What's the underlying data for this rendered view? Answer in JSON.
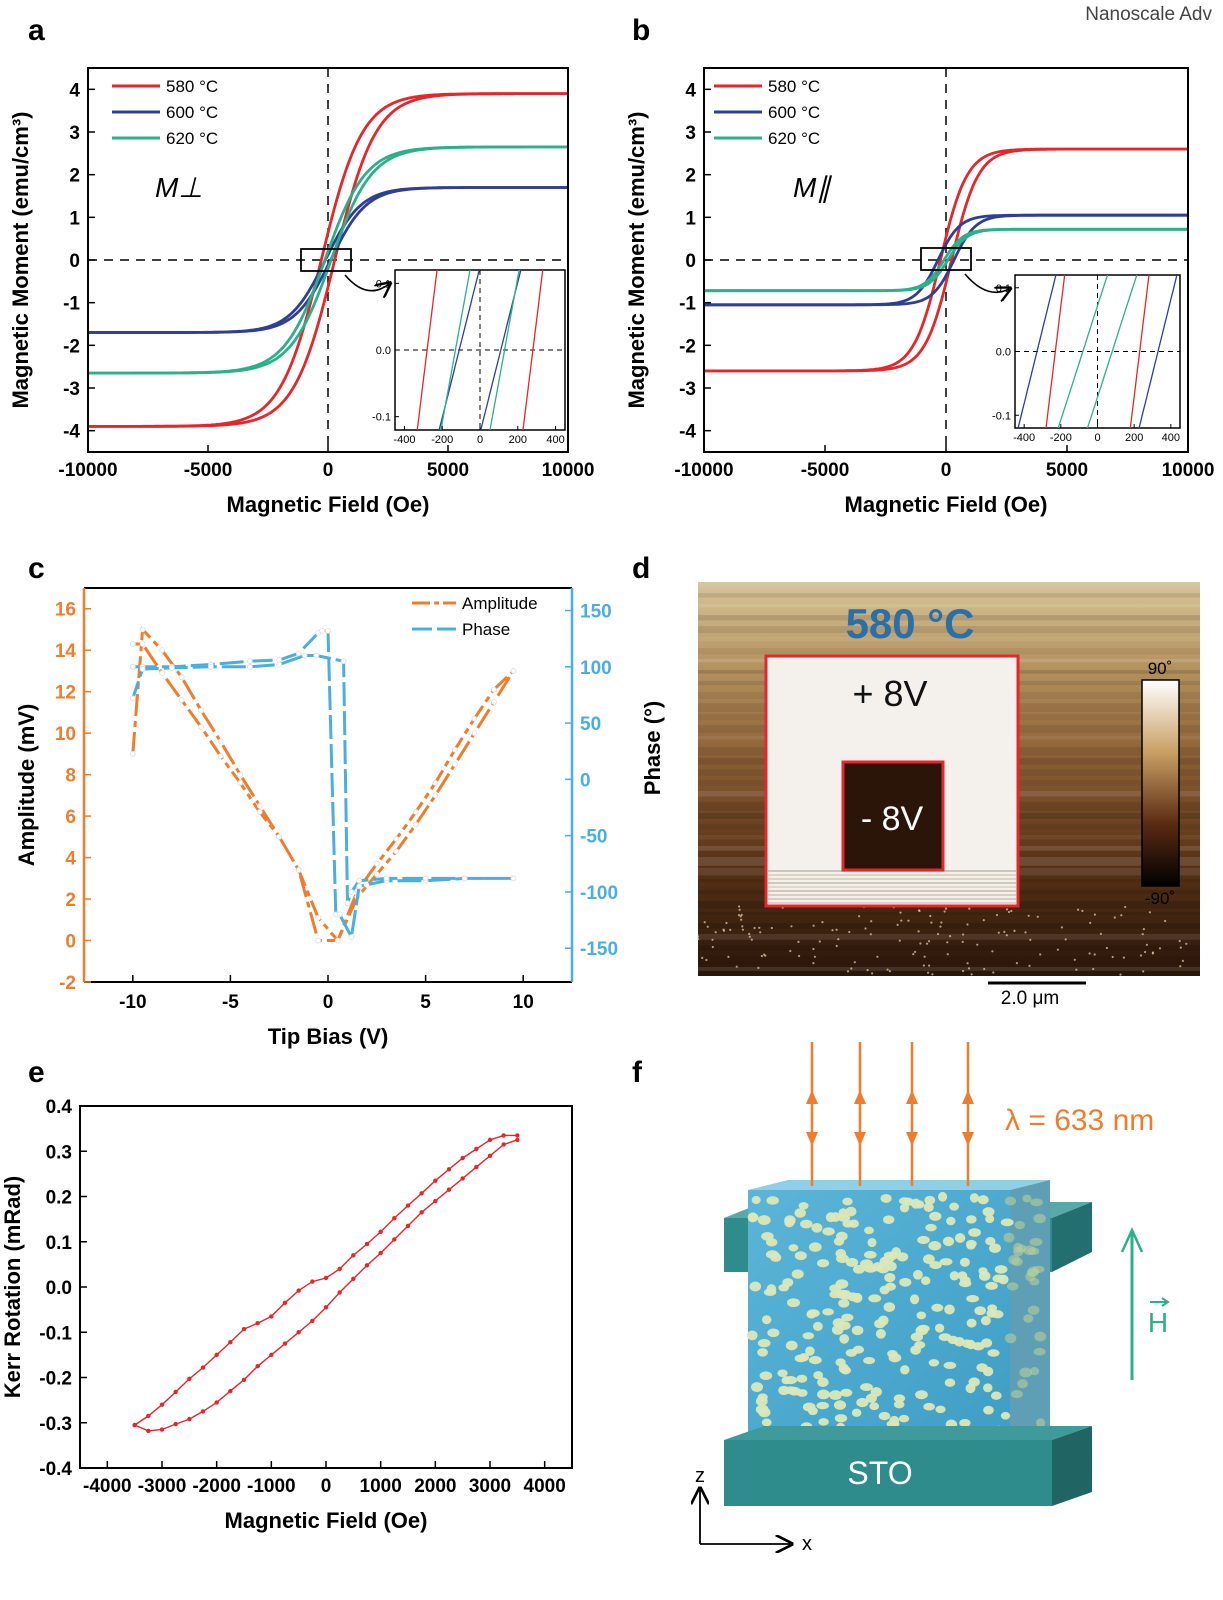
{
  "header": "Nanoscale Adv",
  "colors": {
    "red": "#e5262b",
    "blue": "#2e3f94",
    "green": "#2bb08a",
    "orange": "#ee7d2d",
    "cyan": "#4aaee0",
    "teal": "#2f8c8c",
    "ink": "#000000"
  },
  "panels": {
    "a": {
      "label": "a",
      "annotation": "M⊥"
    },
    "b": {
      "label": "b",
      "annotation": "M∥"
    },
    "c": {
      "label": "c"
    },
    "d": {
      "label": "d",
      "title": "580 °C",
      "outer_label": "+ 8V",
      "inner_label": "- 8V",
      "scale_bar": "2.0 μm",
      "colorbar_top": "90˚",
      "colorbar_bottom": "-90˚",
      "ylabel": "Phase (°)"
    },
    "e": {
      "label": "e"
    },
    "f": {
      "label": "f",
      "wavelength": "λ = 633 nm",
      "field": "H",
      "substrate": "STO",
      "axis_z": "z",
      "axis_x": "x"
    }
  },
  "chart_data": [
    {
      "id": "a",
      "type": "line",
      "xlabel": "Magnetic Field (Oe)",
      "ylabel": "Magnetic Moment (emu/cm³)",
      "xlim": [
        -10000,
        10000
      ],
      "ylim": [
        -4.5,
        4.5
      ],
      "xticks": [
        -10000,
        -5000,
        0,
        5000,
        10000
      ],
      "xtick_labels": [
        "-10000",
        "-5000",
        "0",
        "5000",
        "10000"
      ],
      "yticks": [
        -4,
        -3,
        -2,
        -1,
        0,
        1,
        2,
        3,
        4
      ],
      "ytick_labels": [
        "-4",
        "-3",
        "-2",
        "-1",
        "0",
        "1",
        "2",
        "3",
        "4"
      ],
      "legend_position": "top-left",
      "series": [
        {
          "name": "580 °C",
          "ms": 3.9,
          "hc": 280,
          "k": 1700
        },
        {
          "name": "600 °C",
          "ms": 1.7,
          "hc": 110,
          "k": 1500
        },
        {
          "name": "620 °C",
          "ms": 2.65,
          "hc": 130,
          "k": 1700
        }
      ],
      "inset": {
        "xlim": [
          -450,
          450
        ],
        "ylim": [
          -0.12,
          0.12
        ],
        "xticks": [
          -400,
          -200,
          0,
          200,
          400
        ],
        "xtick_labels": [
          "-400",
          "-200",
          "0",
          "200",
          "400"
        ],
        "yticks": [
          -0.1,
          0,
          0.1
        ],
        "ytick_labels": [
          "-0.1",
          "0.0",
          "0.1"
        ]
      }
    },
    {
      "id": "b",
      "type": "line",
      "xlabel": "Magnetic Field (Oe)",
      "ylabel": "Magnetic Moment (emu/cm³)",
      "xlim": [
        -10000,
        10000
      ],
      "ylim": [
        -4.5,
        4.5
      ],
      "xticks": [
        -10000,
        -5000,
        0,
        5000,
        10000
      ],
      "xtick_labels": [
        "-10000",
        "-5000",
        "0",
        "5000",
        "10000"
      ],
      "yticks": [
        -4,
        -3,
        -2,
        -1,
        0,
        1,
        2,
        3,
        4
      ],
      "ytick_labels": [
        "-4",
        "-3",
        "-2",
        "-1",
        "0",
        "1",
        "2",
        "3",
        "4"
      ],
      "legend_position": "top-left",
      "series": [
        {
          "name": "580 °C",
          "ms": 2.6,
          "hc": 230,
          "k": 1100
        },
        {
          "name": "600 °C",
          "ms": 1.05,
          "hc": 330,
          "k": 900
        },
        {
          "name": "620 °C",
          "ms": 0.72,
          "hc": 80,
          "k": 800
        }
      ],
      "inset": {
        "xlim": [
          -450,
          450
        ],
        "ylim": [
          -0.12,
          0.12
        ],
        "xticks": [
          -400,
          -200,
          0,
          200,
          400
        ],
        "xtick_labels": [
          "-400",
          "-200",
          "0",
          "200",
          "400"
        ],
        "yticks": [
          -0.1,
          0,
          0.1
        ],
        "ytick_labels": [
          "-0.1",
          "0.0",
          "0.1"
        ]
      }
    },
    {
      "id": "c",
      "type": "line",
      "xlabel": "Tip Bias (V)",
      "ylabel": "Amplitude (mV)",
      "y2label": "Phase (°)",
      "xlim": [
        -12.5,
        12.5
      ],
      "ylim": [
        -2,
        17
      ],
      "y2lim": [
        -180,
        170
      ],
      "xticks": [
        -10,
        -5,
        0,
        5,
        10
      ],
      "xtick_labels": [
        "-10",
        "-5",
        "0",
        "5",
        "10"
      ],
      "yticks": [
        -2,
        0,
        2,
        4,
        6,
        8,
        10,
        12,
        14,
        16
      ],
      "ytick_labels": [
        "-2",
        "0",
        "2",
        "4",
        "6",
        "8",
        "10",
        "12",
        "14",
        "16"
      ],
      "y2ticks": [
        -150,
        -100,
        -50,
        0,
        50,
        100,
        150
      ],
      "y2tick_labels": [
        "-150",
        "-100",
        "-50",
        "0",
        "50",
        "100",
        "150"
      ],
      "legend_position": "top-right",
      "series": [
        {
          "name": "Amplitude",
          "axis": "left",
          "x": [
            -10,
            -9.5,
            -8.5,
            -7.5,
            -6.5,
            -5.5,
            -4.5,
            -3.5,
            -2.5,
            -1.5,
            -0.5,
            0.5,
            1.5,
            2.5,
            3.5,
            4.5,
            5.5,
            6.5,
            7.5,
            8.5,
            9.5,
            8.5,
            7.5,
            6.5,
            5.5,
            4.5,
            3.5,
            2.5,
            1.5,
            0.5,
            -0.5,
            -1.5,
            -2.5,
            -3.5,
            -4.5,
            -5.5,
            -6.5,
            -7.5,
            -8.5,
            -9.5,
            -10
          ],
          "y": [
            9,
            15,
            14,
            12.7,
            11.1,
            9.6,
            8,
            6.5,
            5,
            3.4,
            0,
            0,
            2.4,
            3.7,
            4.9,
            6.2,
            7.6,
            9.2,
            10.7,
            12.1,
            13,
            11.5,
            10,
            8.5,
            7,
            5.6,
            4.3,
            3.2,
            2.1,
            0,
            1.1,
            3.4,
            5,
            6.2,
            7.6,
            8.9,
            10.3,
            11.6,
            12.9,
            14.3,
            14.3
          ]
        },
        {
          "name": "Phase",
          "axis": "right",
          "x": [
            -10,
            -9.5,
            -8,
            -6,
            -4,
            -2.5,
            -1.5,
            -0.5,
            -0.3,
            0,
            0.4,
            0.6,
            1.2,
            1.6,
            3,
            5,
            7,
            9.5,
            7,
            5,
            3,
            1.6,
            1.2,
            1,
            0.8,
            -0.6,
            -1.2,
            -2.5,
            -4,
            -6,
            -8,
            -9.5,
            -10
          ],
          "y": [
            100,
            100,
            100,
            102,
            105,
            106,
            112,
            130,
            132,
            132,
            -120,
            -120,
            -140,
            -95,
            -90,
            -90,
            -88,
            -88,
            -88,
            -88,
            -88,
            -90,
            -100,
            -110,
            105,
            110,
            110,
            102,
            100,
            100,
            99,
            98,
            72
          ]
        }
      ]
    },
    {
      "id": "e",
      "type": "line",
      "xlabel": "Magnetic Field (Oe)",
      "ylabel": "Kerr Rotation (mRad)",
      "xlim": [
        -4500,
        4500
      ],
      "ylim": [
        -0.4,
        0.4
      ],
      "xticks": [
        -4000,
        -3000,
        -2000,
        -1000,
        0,
        1000,
        2000,
        3000,
        4000
      ],
      "xtick_labels": [
        "-4000",
        "-3000",
        "-2000",
        "-1000",
        "0",
        "1000",
        "2000",
        "3000",
        "4000"
      ],
      "yticks": [
        -0.4,
        -0.3,
        -0.2,
        -0.1,
        0.0,
        0.1,
        0.2,
        0.3,
        0.4
      ],
      "ytick_labels": [
        "-0.4",
        "-0.3",
        "-0.2",
        "-0.1",
        "0.0",
        "0.1",
        "0.2",
        "0.3",
        "0.4"
      ],
      "series": [
        {
          "name": "",
          "x": [
            -3500,
            -3250,
            -3000,
            -2750,
            -2500,
            -2250,
            -2000,
            -1750,
            -1500,
            -1250,
            -1000,
            -750,
            -500,
            -250,
            0,
            250,
            500,
            750,
            1000,
            1250,
            1500,
            1750,
            2000,
            2250,
            2500,
            2750,
            3000,
            3250,
            3500
          ],
          "y": [
            -0.305,
            -0.285,
            -0.26,
            -0.232,
            -0.203,
            -0.178,
            -0.15,
            -0.122,
            -0.093,
            -0.08,
            -0.065,
            -0.035,
            -0.008,
            0.012,
            0.02,
            0.04,
            0.07,
            0.095,
            0.122,
            0.152,
            0.18,
            0.207,
            0.235,
            0.26,
            0.285,
            0.305,
            0.325,
            0.335,
            0.335
          ]
        },
        {
          "name": "",
          "x": [
            3500,
            3250,
            3000,
            2750,
            2500,
            2250,
            2000,
            1750,
            1500,
            1250,
            1000,
            750,
            500,
            250,
            0,
            -250,
            -500,
            -750,
            -1000,
            -1250,
            -1500,
            -1750,
            -2000,
            -2250,
            -2500,
            -2750,
            -3000,
            -3250,
            -3500
          ],
          "y": [
            0.325,
            0.315,
            0.29,
            0.265,
            0.24,
            0.215,
            0.19,
            0.165,
            0.135,
            0.105,
            0.075,
            0.048,
            0.018,
            -0.012,
            -0.045,
            -0.075,
            -0.1,
            -0.125,
            -0.15,
            -0.175,
            -0.205,
            -0.23,
            -0.255,
            -0.275,
            -0.292,
            -0.303,
            -0.315,
            -0.318,
            -0.305
          ]
        }
      ]
    }
  ]
}
